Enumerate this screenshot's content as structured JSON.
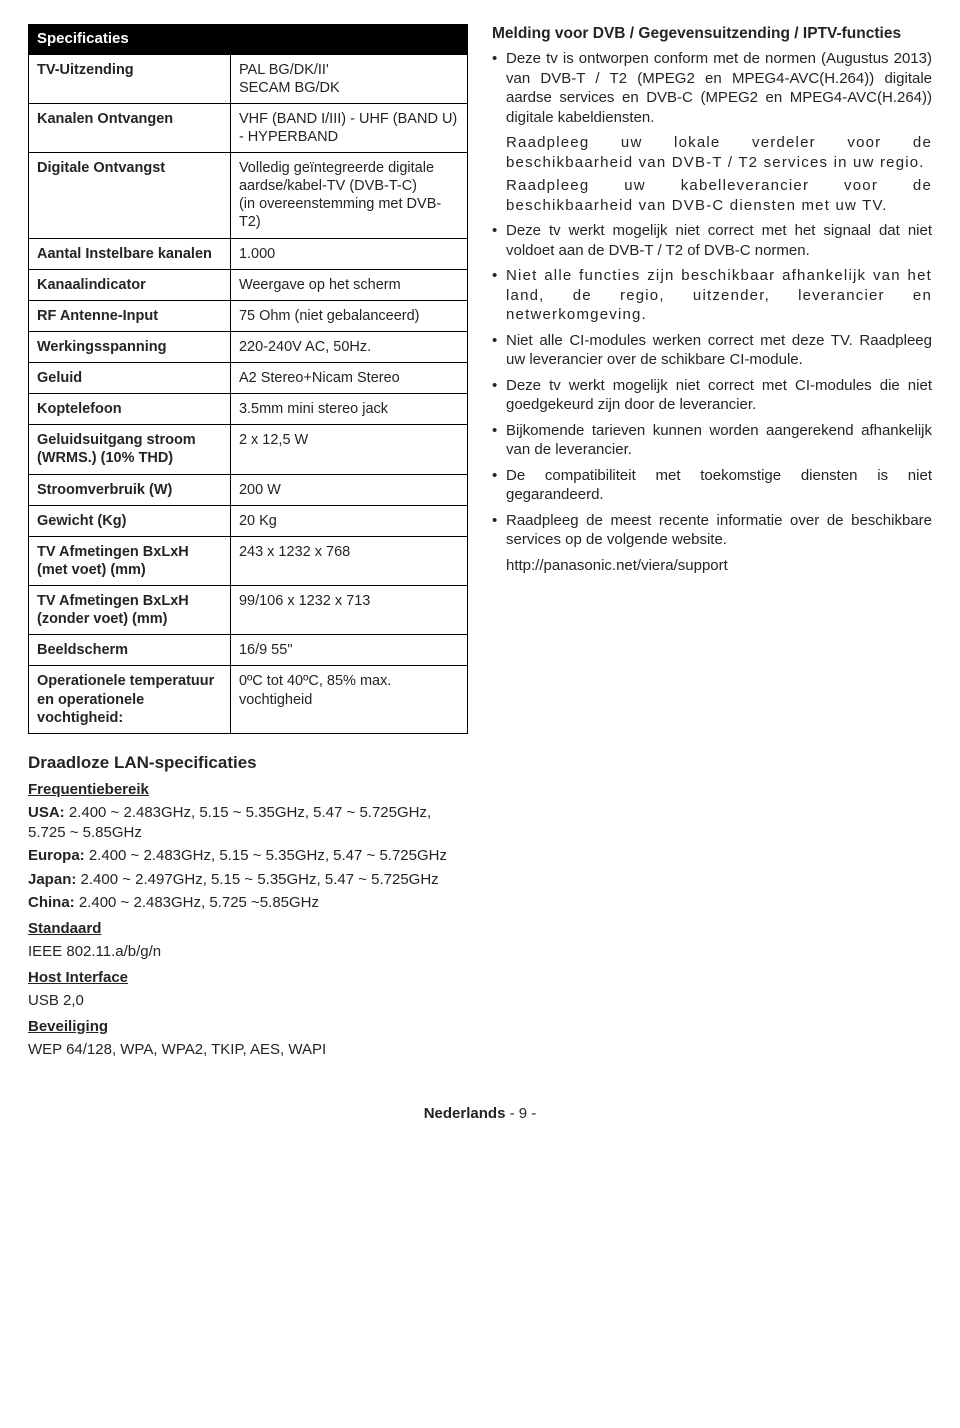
{
  "spec_header": "Specificaties",
  "spec_rows": [
    {
      "label": "TV-Uitzending",
      "value": "PAL BG/DK/II'\nSECAM BG/DK"
    },
    {
      "label": "Kanalen Ontvangen",
      "value": "VHF (BAND I/III) - UHF (BAND U) - HYPERBAND"
    },
    {
      "label": "Digitale Ontvangst",
      "value": "Volledig geïntegreerde digitale aardse/kabel-TV (DVB-T-C)\n(in overeenstemming met DVB-T2)"
    },
    {
      "label": "Aantal Instelbare kanalen",
      "value": "1.000"
    },
    {
      "label": "Kanaalindicator",
      "value": "Weergave op het scherm"
    },
    {
      "label": "RF Antenne-Input",
      "value": "75 Ohm (niet gebalanceerd)"
    },
    {
      "label": "Werkingsspanning",
      "value": "220-240V AC, 50Hz."
    },
    {
      "label": "Geluid",
      "value": "A2 Stereo+Nicam Stereo"
    },
    {
      "label": "Koptelefoon",
      "value": "3.5mm mini stereo jack"
    },
    {
      "label": "Geluidsuitgang stroom (WRMS.) (10% THD)",
      "value": "2 x 12,5 W"
    },
    {
      "label": "Stroomverbruik (W)",
      "value": "200 W"
    },
    {
      "label": "Gewicht (Kg)",
      "value": "20 Kg"
    },
    {
      "label": "TV Afmetingen BxLxH (met voet) (mm)",
      "value": "243 x 1232 x 768"
    },
    {
      "label": "TV Afmetingen BxLxH (zonder voet) (mm)",
      "value": "99/106 x 1232 x 713"
    },
    {
      "label": "Beeldscherm",
      "value": "16/9 55\""
    },
    {
      "label": "Operationele temperatuur en operationele vochtigheid:",
      "value": "0ºC tot 40ºC, 85% max. vochtigheid"
    }
  ],
  "wlan_title": "Draadloze LAN-specificaties",
  "freq_title": "Frequentiebereik",
  "freq_usa_label": "USA:",
  "freq_usa": " 2.400 ~ 2.483GHz, 5.15 ~ 5.35GHz, 5.47 ~ 5.725GHz, 5.725 ~ 5.85GHz",
  "freq_eu_label": "Europa:",
  "freq_eu": " 2.400 ~ 2.483GHz, 5.15 ~ 5.35GHz, 5.47 ~ 5.725GHz",
  "freq_jp_label": "Japan:",
  "freq_jp": " 2.400 ~ 2.497GHz, 5.15 ~ 5.35GHz, 5.47 ~ 5.725GHz",
  "freq_cn_label": "China:",
  "freq_cn": " 2.400 ~ 2.483GHz, 5.725 ~5.85GHz",
  "std_title": "Standaard",
  "std_value": "IEEE 802.11.a/b/g/n",
  "host_title": "Host Interface",
  "host_value": "USB 2,0",
  "sec_title": "Beveiliging",
  "sec_value": "WEP 64/128, WPA, WPA2, TKIP, AES, WAPI",
  "right_title": "Melding voor DVB / Gegevensuitzending / IPTV-functies",
  "bullets": [
    "Deze tv is ontworpen conform met de normen (Augustus 2013) van DVB-T / T2  (MPEG2 en MPEG4-AVC(H.264)) digitale aardse services en DVB-C (MPEG2 en MPEG4-AVC(H.264)) digitale kabeldiensten.",
    "Deze tv werkt mogelijk niet correct met het signaal dat niet voldoet aan de DVB-T / T2  of DVB-C normen.",
    "Niet alle functies zijn beschikbaar afhankelijk van het land, de regio, uitzender, leverancier en netwerkomgeving.",
    "Niet alle CI-modules werken correct met deze TV. Raadpleeg uw leverancier over de schikbare CI-module.",
    "Deze tv werkt mogelijk niet correct met CI-modules die niet goedgekeurd zijn door de leverancier.",
    "Bijkomende tarieven kunnen worden aangerekend afhankelijk van de leverancier.",
    "De compatibiliteit met toekomstige diensten is niet gegarandeerd.",
    "Raadpleeg de meest recente informatie over de beschikbare services op de volgende website."
  ],
  "indent1": "Raadpleeg uw lokale verdeler voor de beschikbaarheid van DVB-T / T2  services in uw regio.",
  "indent2": "Raadpleeg uw kabelleverancier voor de beschikbaarheid van DVB-C diensten met uw TV.",
  "url": "http://panasonic.net/viera/support",
  "footer_lang": "Nederlands",
  "footer_page": "  - 9 -"
}
